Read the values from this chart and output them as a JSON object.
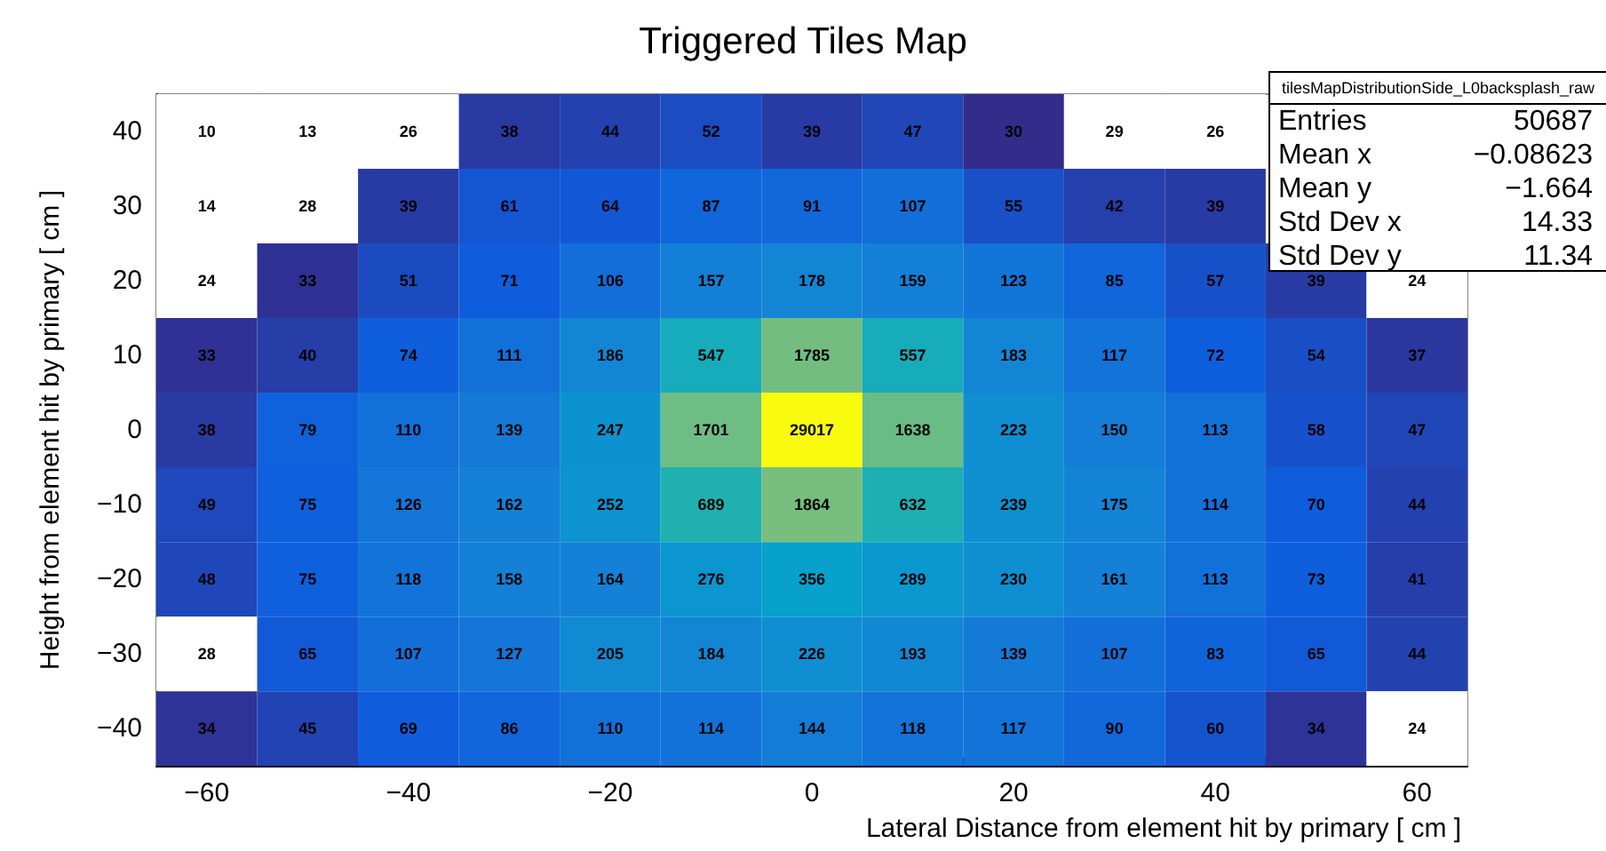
{
  "chart_data": {
    "type": "heatmap",
    "title": "Triggered Tiles Map",
    "xlabel": "Lateral Distance from element hit by primary [ cm ]",
    "ylabel": "Height from element hit by primary [ cm ]",
    "annotations": [
      "tilesMapDistributionSide_L0backsplash_raw",
      "Entries",
      "50687",
      "Mean x",
      "−0.08623",
      "Mean y",
      "−1.664",
      "Std Dev x",
      "14.33",
      "Std Dev y",
      "11.34"
    ],
    "cells": [
      [
        10,
        13,
        26,
        38,
        44,
        52,
        39,
        47,
        30,
        29,
        26,
        null,
        null
      ],
      [
        14,
        28,
        39,
        61,
        64,
        87,
        91,
        107,
        55,
        42,
        39,
        null,
        null
      ],
      [
        24,
        33,
        51,
        71,
        106,
        157,
        178,
        159,
        123,
        85,
        57,
        39,
        24
      ],
      [
        33,
        40,
        74,
        111,
        186,
        547,
        1785,
        557,
        183,
        117,
        72,
        54,
        37
      ],
      [
        38,
        79,
        110,
        139,
        247,
        1701,
        29017,
        1638,
        223,
        150,
        113,
        58,
        47
      ],
      [
        49,
        75,
        126,
        162,
        252,
        689,
        1864,
        632,
        239,
        175,
        114,
        70,
        44
      ],
      [
        48,
        75,
        118,
        158,
        164,
        276,
        356,
        289,
        230,
        161,
        113,
        73,
        41
      ],
      [
        28,
        65,
        107,
        127,
        205,
        184,
        226,
        193,
        139,
        107,
        83,
        65,
        44
      ],
      [
        34,
        45,
        69,
        86,
        110,
        114,
        144,
        118,
        117,
        90,
        60,
        34,
        24
      ]
    ],
    "data_labels": true,
    "xlim": [
      -65,
      65
    ],
    "xticks": [
      -60,
      -40,
      -20,
      0,
      20,
      40,
      60
    ],
    "ylim": [
      -45,
      45
    ],
    "yticks": [
      -40,
      -30,
      -20,
      -10,
      0,
      10,
      20,
      30,
      40
    ],
    "grid": false
  }
}
